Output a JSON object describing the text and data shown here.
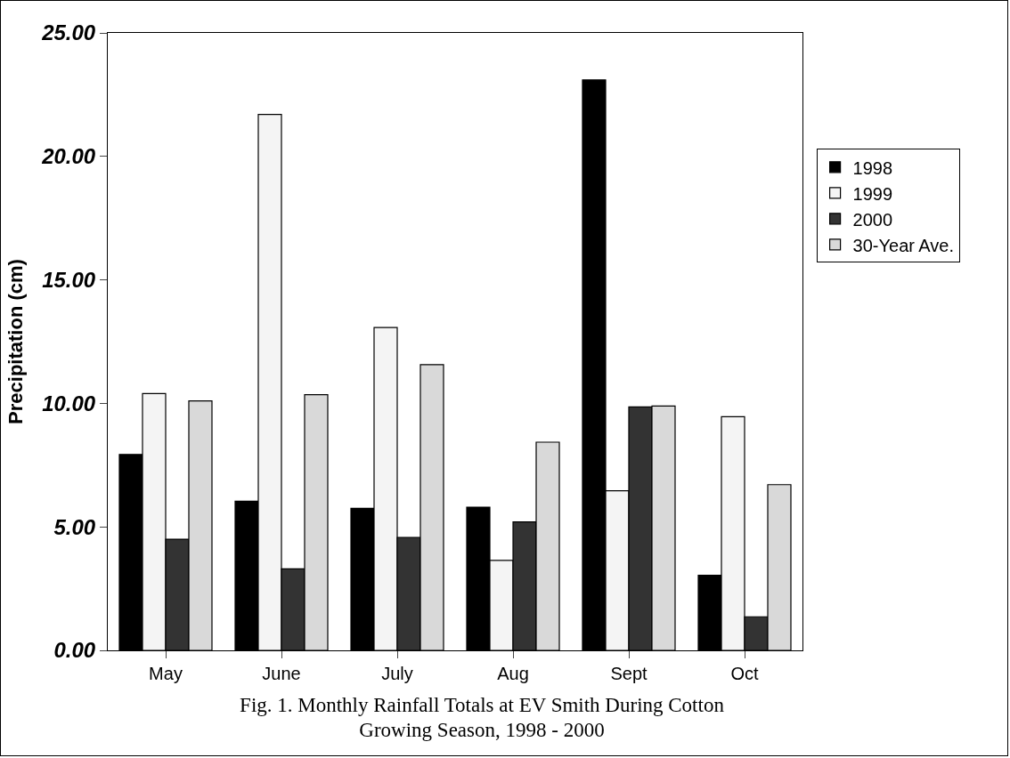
{
  "chart_data": {
    "type": "bar",
    "title": "Fig. 1. Monthly Rainfall Totals at EV Smith During Cotton Growing Season, 1998 - 2000",
    "ylabel": "Precipitation (cm)",
    "categories": [
      "May",
      "June",
      "July",
      "Aug",
      "Sept",
      "Oct"
    ],
    "series": [
      {
        "name": "1998",
        "color": "#000000",
        "values": [
          7.93,
          6.04,
          5.75,
          5.8,
          23.1,
          3.04
        ]
      },
      {
        "name": "1999",
        "color": "#f4f4f4",
        "values": [
          10.4,
          21.7,
          13.07,
          3.64,
          6.46,
          9.46
        ]
      },
      {
        "name": "2000",
        "color": "#333333",
        "values": [
          4.5,
          3.3,
          4.57,
          5.2,
          9.86,
          1.36
        ]
      },
      {
        "name": "30-Year Ave.",
        "color": "#d9d9d9",
        "values": [
          10.1,
          10.35,
          11.57,
          8.43,
          9.89,
          6.71
        ]
      }
    ],
    "ylim": [
      0,
      25
    ],
    "yticks": [
      {
        "value": 0,
        "label": "0.00"
      },
      {
        "value": 5,
        "label": "5.00"
      },
      {
        "value": 10,
        "label": "10.00"
      },
      {
        "value": 15,
        "label": "15.00"
      },
      {
        "value": 20,
        "label": "20.00"
      },
      {
        "value": 25,
        "label": "25.00"
      }
    ],
    "grid": false,
    "legend": "right"
  }
}
